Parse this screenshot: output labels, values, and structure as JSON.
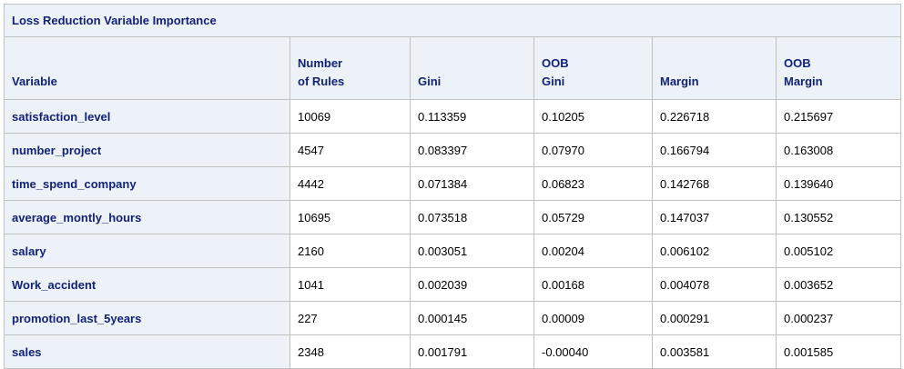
{
  "table": {
    "title": "Loss Reduction Variable Importance",
    "headers": [
      {
        "line1": "",
        "line2": "Variable"
      },
      {
        "line1": "Number",
        "line2": "of Rules"
      },
      {
        "line1": "",
        "line2": "Gini"
      },
      {
        "line1": "OOB",
        "line2": "Gini"
      },
      {
        "line1": "",
        "line2": "Margin"
      },
      {
        "line1": "OOB",
        "line2": "Margin"
      }
    ],
    "rows": [
      {
        "variable": "satisfaction_level",
        "rules": "10069",
        "gini": "0.113359",
        "oob_gini": "0.10205",
        "margin": "0.226718",
        "oob_margin": "0.215697"
      },
      {
        "variable": "number_project",
        "rules": "4547",
        "gini": "0.083397",
        "oob_gini": "0.07970",
        "margin": "0.166794",
        "oob_margin": "0.163008"
      },
      {
        "variable": "time_spend_company",
        "rules": "4442",
        "gini": "0.071384",
        "oob_gini": "0.06823",
        "margin": "0.142768",
        "oob_margin": "0.139640"
      },
      {
        "variable": "average_montly_hours",
        "rules": "10695",
        "gini": "0.073518",
        "oob_gini": "0.05729",
        "margin": "0.147037",
        "oob_margin": "0.130552"
      },
      {
        "variable": "salary",
        "rules": "2160",
        "gini": "0.003051",
        "oob_gini": "0.00204",
        "margin": "0.006102",
        "oob_margin": "0.005102"
      },
      {
        "variable": "Work_accident",
        "rules": "1041",
        "gini": "0.002039",
        "oob_gini": "0.00168",
        "margin": "0.004078",
        "oob_margin": "0.003652"
      },
      {
        "variable": "promotion_last_5years",
        "rules": "227",
        "gini": "0.000145",
        "oob_gini": "0.00009",
        "margin": "0.000291",
        "oob_margin": "0.000237"
      },
      {
        "variable": "sales",
        "rules": "2348",
        "gini": "0.001791",
        "oob_gini": "-0.00040",
        "margin": "0.003581",
        "oob_margin": "0.001585"
      }
    ]
  }
}
